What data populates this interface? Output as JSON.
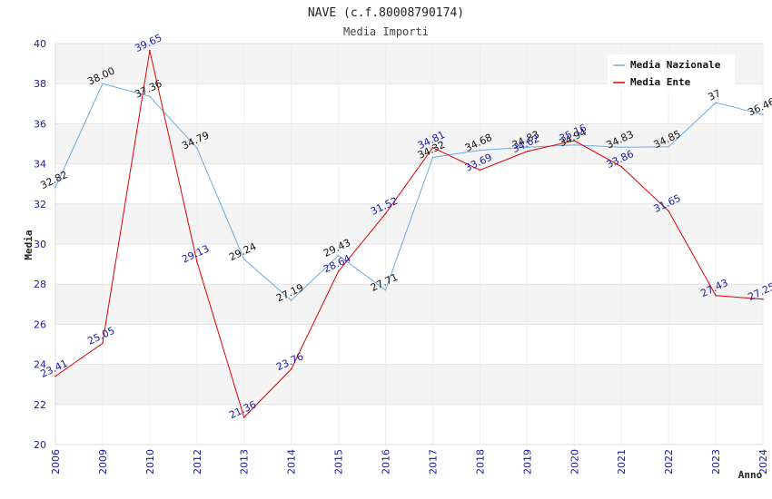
{
  "chart_data": {
    "type": "line",
    "title": "NAVE (c.f.80008790174)",
    "subtitle": "Media Importi",
    "xlabel": "Anno",
    "ylabel": "Media",
    "categories": [
      "2006",
      "2009",
      "2010",
      "2012",
      "2013",
      "2014",
      "2015",
      "2016",
      "2017",
      "2018",
      "2019",
      "2020",
      "2021",
      "2022",
      "2023",
      "2024"
    ],
    "y_ticks": [
      "20",
      "22",
      "24",
      "26",
      "28",
      "30",
      "32",
      "34",
      "36",
      "38",
      "40"
    ],
    "ylim": [
      20,
      40
    ],
    "grid": true,
    "legend_position": "top-right",
    "series": [
      {
        "name": "Media Nazionale",
        "color": "#6aaae4",
        "values": [
          32.82,
          38.0,
          37.36,
          34.79,
          29.24,
          27.19,
          29.43,
          27.71,
          34.32,
          34.68,
          34.83,
          34.94,
          34.83,
          34.85,
          37.05,
          36.46
        ],
        "labels": [
          "32.82",
          "38.00",
          "37.36",
          "34.79",
          "29.24",
          "27.19",
          "29.43",
          "27.71",
          "34.32",
          "34.68",
          "34.83",
          "34.94",
          "34.83",
          "34.85",
          "37",
          "36.46"
        ]
      },
      {
        "name": "Media Ente",
        "color": "#e00000",
        "values": [
          23.41,
          25.05,
          39.65,
          29.13,
          21.36,
          23.76,
          28.64,
          31.52,
          34.81,
          33.69,
          34.62,
          35.16,
          33.86,
          31.65,
          27.43,
          27.25
        ],
        "labels": [
          "23.41",
          "25.05",
          "39.65",
          "29.13",
          "21.36",
          "23.76",
          "28.64",
          "31.52",
          "34.81",
          "33.69",
          "34.62",
          "35.16",
          "33.86",
          "31.65",
          "27.43",
          "27.25"
        ]
      }
    ]
  }
}
